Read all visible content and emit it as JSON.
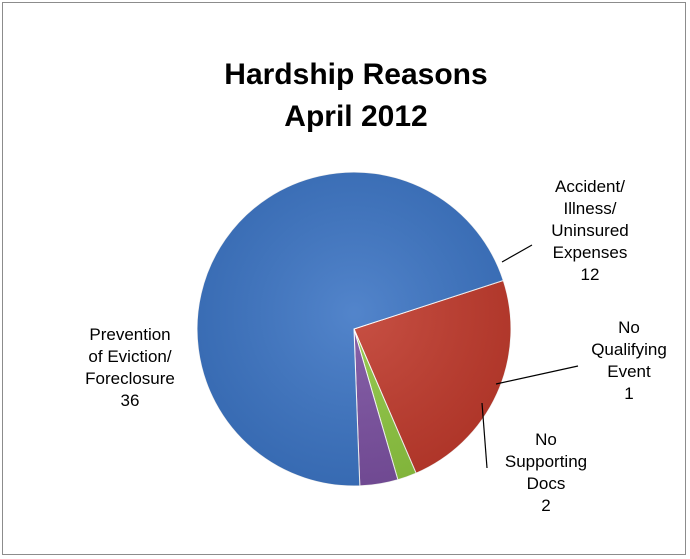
{
  "chart_data": {
    "type": "pie",
    "title": [
      "Hardship Reasons",
      "April 2012"
    ],
    "slices": [
      {
        "label_lines": [
          "Accident/",
          "Illness/",
          "Uninsured",
          "Expenses"
        ],
        "value": 12,
        "color": "#c0392b"
      },
      {
        "label_lines": [
          "No",
          "Qualifying",
          "Event"
        ],
        "value": 1,
        "color": "#8dc63f"
      },
      {
        "label_lines": [
          "No",
          "Supporting",
          "Docs"
        ],
        "value": 2,
        "color": "#7a4fa0"
      },
      {
        "label_lines": [
          "Prevention",
          "of Eviction/",
          "Foreclosure"
        ],
        "value": 36,
        "color": "#3b74c4"
      }
    ],
    "legend": "none"
  }
}
